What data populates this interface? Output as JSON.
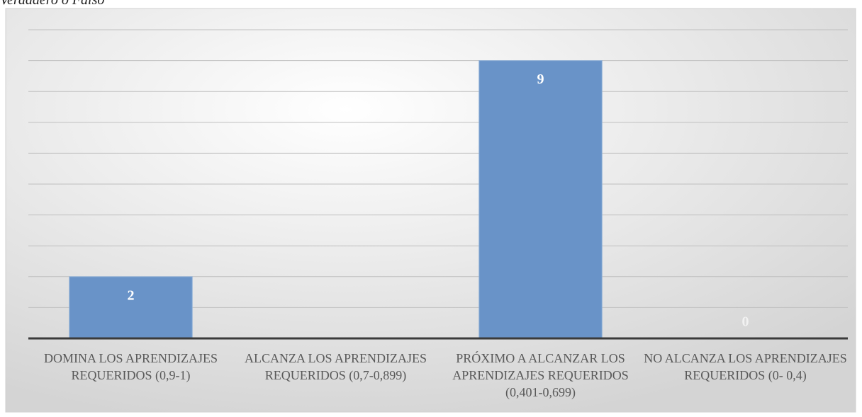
{
  "chart_data": {
    "type": "bar",
    "title": "Verdadero o Falso",
    "categories": [
      "DOMINA LOS APRENDIZAJES REQUERIDOS (0,9-1)",
      "ALCANZA LOS APRENDIZAJES REQUERIDOS (0,7-0,899)",
      "PRÓXIMO A ALCANZAR LOS APRENDIZAJES REQUERIDOS (0,401-0,699)",
      "NO ALCANZA LOS APRENDIZAJES REQUERIDOS (0- 0,4)"
    ],
    "values": [
      2,
      null,
      9,
      0
    ],
    "color": "#6993c8",
    "ylim": [
      0,
      10
    ],
    "yticks": [
      0,
      1,
      2,
      3,
      4,
      5,
      6,
      7,
      8,
      9,
      10
    ],
    "grid": true
  }
}
